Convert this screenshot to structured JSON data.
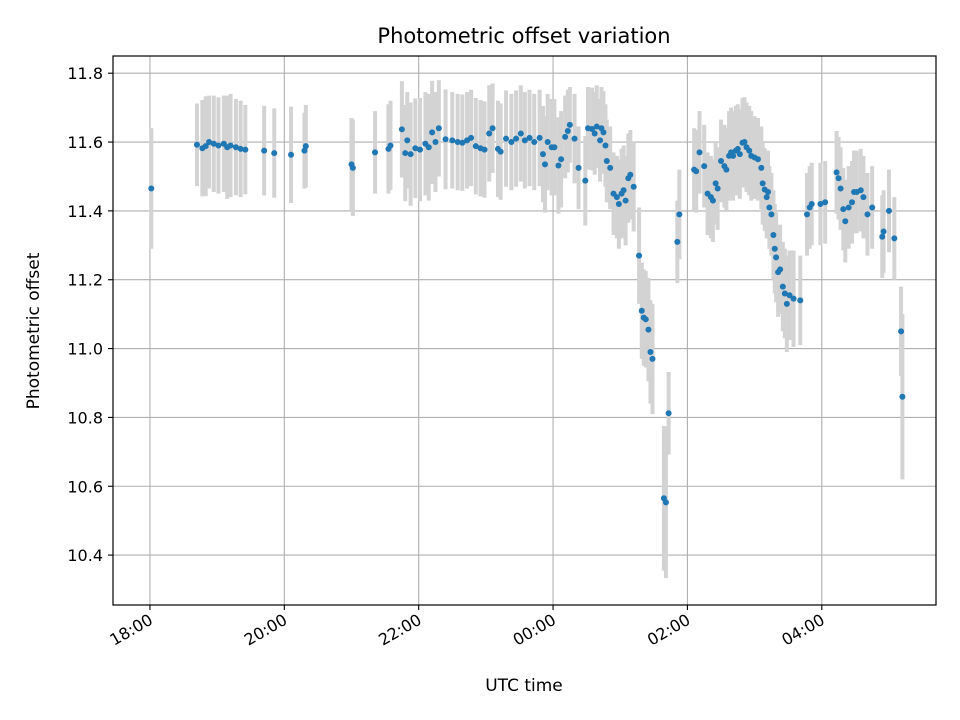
{
  "chart_data": {
    "type": "scatter",
    "title": "Photometric offset variation",
    "xlabel": "UTC time",
    "ylabel": "Photometric offset",
    "x_unit": "hours",
    "xlim": [
      17.45,
      29.7
    ],
    "ylim": [
      10.255,
      11.85
    ],
    "x_ticks": [
      {
        "x": 18,
        "label": "18:00"
      },
      {
        "x": 20,
        "label": "20:00"
      },
      {
        "x": 22,
        "label": "22:00"
      },
      {
        "x": 24,
        "label": "00:00"
      },
      {
        "x": 26,
        "label": "02:00"
      },
      {
        "x": 28,
        "label": "04:00"
      }
    ],
    "y_ticks": [
      {
        "y": 10.4,
        "label": "10.4"
      },
      {
        "y": 10.6,
        "label": "10.6"
      },
      {
        "y": 10.8,
        "label": "10.8"
      },
      {
        "y": 11.0,
        "label": "11.0"
      },
      {
        "y": 11.2,
        "label": "11.2"
      },
      {
        "y": 11.4,
        "label": "11.4"
      },
      {
        "y": 11.6,
        "label": "11.6"
      },
      {
        "y": 11.8,
        "label": "11.8"
      }
    ],
    "grid": true,
    "colors": {
      "point": "#1f77b4",
      "errorbar": "#d3d3d3",
      "grid": "#b0b0b0"
    },
    "points": [
      [
        18.02,
        11.465,
        0.175
      ],
      [
        18.7,
        11.592,
        0.12
      ],
      [
        18.78,
        11.582,
        0.14
      ],
      [
        18.83,
        11.588,
        0.145
      ],
      [
        18.88,
        11.6,
        0.135
      ],
      [
        18.95,
        11.595,
        0.14
      ],
      [
        19.02,
        11.59,
        0.14
      ],
      [
        19.1,
        11.595,
        0.14
      ],
      [
        19.15,
        11.585,
        0.15
      ],
      [
        19.2,
        11.59,
        0.15
      ],
      [
        19.28,
        11.585,
        0.14
      ],
      [
        19.35,
        11.58,
        0.14
      ],
      [
        19.42,
        11.578,
        0.13
      ],
      [
        19.7,
        11.575,
        0.13
      ],
      [
        19.85,
        11.568,
        0.13
      ],
      [
        20.1,
        11.563,
        0.14
      ],
      [
        20.3,
        11.575,
        0.11
      ],
      [
        20.32,
        11.588,
        0.12
      ],
      [
        21.0,
        11.535,
        0.135
      ],
      [
        21.02,
        11.525,
        0.14
      ],
      [
        21.35,
        11.57,
        0.12
      ],
      [
        21.55,
        11.58,
        0.13
      ],
      [
        21.58,
        11.59,
        0.13
      ],
      [
        21.75,
        11.637,
        0.14
      ],
      [
        21.8,
        11.568,
        0.14
      ],
      [
        21.83,
        11.605,
        0.14
      ],
      [
        21.88,
        11.565,
        0.15
      ],
      [
        21.95,
        11.582,
        0.145
      ],
      [
        22.02,
        11.578,
        0.15
      ],
      [
        22.1,
        11.595,
        0.15
      ],
      [
        22.15,
        11.585,
        0.155
      ],
      [
        22.2,
        11.628,
        0.15
      ],
      [
        22.25,
        11.6,
        0.145
      ],
      [
        22.3,
        11.64,
        0.14
      ],
      [
        22.4,
        11.608,
        0.145
      ],
      [
        22.5,
        11.605,
        0.14
      ],
      [
        22.58,
        11.6,
        0.14
      ],
      [
        22.65,
        11.598,
        0.14
      ],
      [
        22.72,
        11.605,
        0.14
      ],
      [
        22.78,
        11.612,
        0.14
      ],
      [
        22.85,
        11.588,
        0.14
      ],
      [
        22.92,
        11.582,
        0.14
      ],
      [
        22.98,
        11.578,
        0.14
      ],
      [
        23.05,
        11.625,
        0.14
      ],
      [
        23.1,
        11.64,
        0.13
      ],
      [
        23.18,
        11.58,
        0.14
      ],
      [
        23.22,
        11.572,
        0.14
      ],
      [
        23.3,
        11.61,
        0.14
      ],
      [
        23.38,
        11.6,
        0.14
      ],
      [
        23.45,
        11.61,
        0.14
      ],
      [
        23.52,
        11.625,
        0.14
      ],
      [
        23.58,
        11.605,
        0.14
      ],
      [
        23.65,
        11.612,
        0.14
      ],
      [
        23.72,
        11.6,
        0.14
      ],
      [
        23.8,
        11.612,
        0.14
      ],
      [
        23.85,
        11.565,
        0.14
      ],
      [
        23.88,
        11.535,
        0.14
      ],
      [
        23.92,
        11.6,
        0.14
      ],
      [
        23.98,
        11.585,
        0.14
      ],
      [
        24.02,
        11.585,
        0.14
      ],
      [
        24.08,
        11.532,
        0.14
      ],
      [
        24.12,
        11.55,
        0.14
      ],
      [
        24.18,
        11.615,
        0.12
      ],
      [
        24.22,
        11.632,
        0.12
      ],
      [
        24.25,
        11.65,
        0.11
      ],
      [
        24.32,
        11.61,
        0.13
      ],
      [
        24.38,
        11.525,
        0.12
      ],
      [
        24.48,
        11.488,
        0.13
      ],
      [
        24.52,
        11.64,
        0.12
      ],
      [
        24.58,
        11.638,
        0.12
      ],
      [
        24.62,
        11.625,
        0.12
      ],
      [
        24.65,
        11.645,
        0.12
      ],
      [
        24.7,
        11.605,
        0.12
      ],
      [
        24.72,
        11.64,
        0.12
      ],
      [
        24.75,
        11.628,
        0.12
      ],
      [
        24.78,
        11.59,
        0.12
      ],
      [
        24.8,
        11.545,
        0.12
      ],
      [
        24.85,
        11.525,
        0.12
      ],
      [
        24.9,
        11.45,
        0.12
      ],
      [
        24.95,
        11.44,
        0.12
      ],
      [
        24.98,
        11.42,
        0.13
      ],
      [
        25.02,
        11.45,
        0.13
      ],
      [
        25.05,
        11.46,
        0.13
      ],
      [
        25.08,
        11.43,
        0.13
      ],
      [
        25.12,
        11.495,
        0.13
      ],
      [
        25.15,
        11.505,
        0.13
      ],
      [
        25.2,
        11.47,
        0.13
      ],
      [
        25.28,
        11.27,
        0.14
      ],
      [
        25.32,
        11.11,
        0.14
      ],
      [
        25.35,
        11.09,
        0.14
      ],
      [
        25.38,
        11.085,
        0.14
      ],
      [
        25.42,
        11.055,
        0.15
      ],
      [
        25.45,
        10.99,
        0.15
      ],
      [
        25.48,
        10.97,
        0.16
      ],
      [
        25.65,
        10.565,
        0.21
      ],
      [
        25.68,
        10.553,
        0.22
      ],
      [
        25.72,
        10.812,
        0.12
      ],
      [
        25.85,
        11.31,
        0.12
      ],
      [
        25.88,
        11.39,
        0.13
      ],
      [
        26.1,
        11.52,
        0.12
      ],
      [
        26.13,
        11.515,
        0.12
      ],
      [
        26.18,
        11.57,
        0.12
      ],
      [
        26.25,
        11.53,
        0.12
      ],
      [
        26.3,
        11.45,
        0.12
      ],
      [
        26.35,
        11.44,
        0.12
      ],
      [
        26.38,
        11.43,
        0.12
      ],
      [
        26.42,
        11.48,
        0.12
      ],
      [
        26.45,
        11.465,
        0.12
      ],
      [
        26.5,
        11.545,
        0.12
      ],
      [
        26.55,
        11.53,
        0.12
      ],
      [
        26.58,
        11.52,
        0.12
      ],
      [
        26.62,
        11.56,
        0.13
      ],
      [
        26.65,
        11.57,
        0.13
      ],
      [
        26.68,
        11.56,
        0.13
      ],
      [
        26.72,
        11.575,
        0.13
      ],
      [
        26.75,
        11.58,
        0.13
      ],
      [
        26.78,
        11.565,
        0.13
      ],
      [
        26.82,
        11.598,
        0.13
      ],
      [
        26.85,
        11.6,
        0.13
      ],
      [
        26.88,
        11.585,
        0.13
      ],
      [
        26.92,
        11.575,
        0.13
      ],
      [
        26.95,
        11.56,
        0.13
      ],
      [
        27.0,
        11.555,
        0.12
      ],
      [
        27.05,
        11.55,
        0.12
      ],
      [
        27.1,
        11.525,
        0.12
      ],
      [
        27.12,
        11.48,
        0.12
      ],
      [
        27.15,
        11.462,
        0.12
      ],
      [
        27.18,
        11.44,
        0.12
      ],
      [
        27.2,
        11.455,
        0.12
      ],
      [
        27.22,
        11.41,
        0.12
      ],
      [
        27.25,
        11.39,
        0.12
      ],
      [
        27.28,
        11.33,
        0.13
      ],
      [
        27.3,
        11.29,
        0.13
      ],
      [
        27.32,
        11.265,
        0.13
      ],
      [
        27.35,
        11.222,
        0.13
      ],
      [
        27.38,
        11.23,
        0.13
      ],
      [
        27.42,
        11.18,
        0.13
      ],
      [
        27.45,
        11.16,
        0.13
      ],
      [
        27.48,
        11.13,
        0.14
      ],
      [
        27.52,
        11.155,
        0.13
      ],
      [
        27.58,
        11.145,
        0.14
      ],
      [
        27.68,
        11.14,
        0.13
      ],
      [
        27.78,
        11.39,
        0.12
      ],
      [
        27.82,
        11.41,
        0.12
      ],
      [
        27.85,
        11.42,
        0.12
      ],
      [
        27.98,
        11.42,
        0.12
      ],
      [
        28.05,
        11.425,
        0.12
      ],
      [
        28.22,
        11.512,
        0.12
      ],
      [
        28.25,
        11.495,
        0.12
      ],
      [
        28.28,
        11.465,
        0.12
      ],
      [
        28.32,
        11.405,
        0.12
      ],
      [
        28.35,
        11.37,
        0.12
      ],
      [
        28.4,
        11.41,
        0.12
      ],
      [
        28.45,
        11.425,
        0.12
      ],
      [
        28.48,
        11.455,
        0.12
      ],
      [
        28.52,
        11.455,
        0.12
      ],
      [
        28.58,
        11.46,
        0.12
      ],
      [
        28.62,
        11.44,
        0.12
      ],
      [
        28.68,
        11.39,
        0.12
      ],
      [
        28.75,
        11.41,
        0.12
      ],
      [
        28.9,
        11.325,
        0.12
      ],
      [
        28.92,
        11.34,
        0.12
      ],
      [
        29.0,
        11.4,
        0.12
      ],
      [
        29.08,
        11.32,
        0.12
      ],
      [
        29.18,
        11.05,
        0.13
      ],
      [
        29.2,
        10.86,
        0.24
      ]
    ]
  }
}
